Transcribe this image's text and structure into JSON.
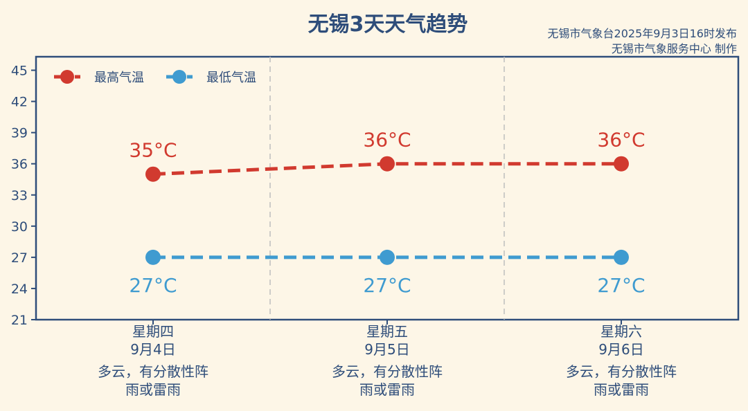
{
  "title": "无锡3天天气趋势",
  "source_lines": [
    "无锡市气象台2025年9月3日16时发布",
    "无锡市气象服务中心 制作"
  ],
  "colors": {
    "high": "#d13a2f",
    "low": "#3f9bd0",
    "axis": "#2e4d7a",
    "background": "#fdf6e7"
  },
  "days": [
    {
      "weekday": "星期四",
      "date": "9月4日",
      "weather_line1": "多云，有分散性阵",
      "weather_line2": "雨或雷雨"
    },
    {
      "weekday": "星期五",
      "date": "9月5日",
      "weather_line1": "多云，有分散性阵",
      "weather_line2": "雨或雷雨"
    },
    {
      "weekday": "星期六",
      "date": "9月6日",
      "weather_line1": "多云，有分散性阵",
      "weather_line2": "雨或雷雨"
    }
  ],
  "chart_data": {
    "type": "line",
    "title": "无锡3天天气趋势",
    "categories": [
      "星期四",
      "星期五",
      "星期六"
    ],
    "series": [
      {
        "name": "最高气温",
        "values": [
          35,
          36,
          36
        ],
        "labels": [
          "35°C",
          "36°C",
          "36°C"
        ],
        "color": "#d13a2f",
        "style": "dashed"
      },
      {
        "name": "最低气温",
        "values": [
          27,
          27,
          27
        ],
        "labels": [
          "27°C",
          "27°C",
          "27°C"
        ],
        "color": "#3f9bd0",
        "style": "dashed"
      }
    ],
    "yticks": [
      21,
      24,
      27,
      30,
      33,
      36,
      39,
      42,
      45
    ],
    "ylim": [
      21,
      46.3
    ],
    "grid": "vertical dashed separators between days",
    "legend": "top-left"
  }
}
